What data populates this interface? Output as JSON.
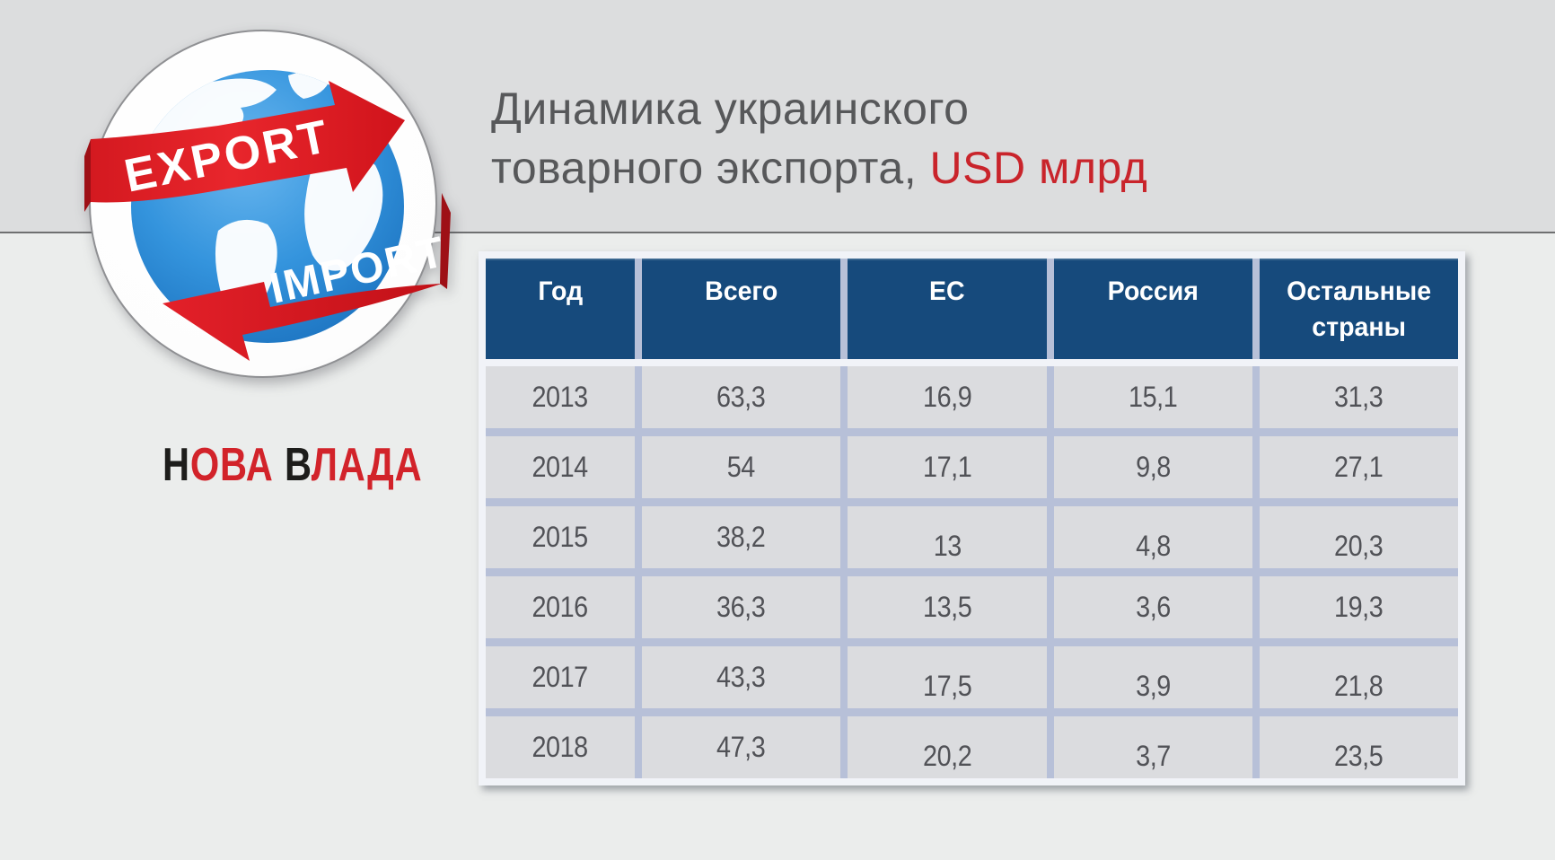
{
  "page": {
    "background_top": "#dcddde",
    "background_bottom": "#ebedec",
    "accent_red": "#c9242b",
    "header_blue": "#164a7c"
  },
  "title": {
    "line1": "Динамика украинского",
    "line2_plain": "товарного экспорта, ",
    "line2_accent": "USD млрд"
  },
  "logo": {
    "export_label": "EXPORT",
    "import_label": "IMPORT"
  },
  "brand": {
    "segments": [
      {
        "text": "Н",
        "color": "#1d1d1b"
      },
      {
        "text": "ОВА",
        "color": "#d2232a"
      },
      {
        "text": " ",
        "color": "#1d1d1b"
      },
      {
        "text": "В",
        "color": "#1d1d1b"
      },
      {
        "text": "ЛАДА",
        "color": "#d2232a"
      }
    ]
  },
  "table": {
    "columns": [
      "Год",
      "Всего",
      "ЕС",
      "Россия",
      "Остальные страны"
    ],
    "rows": [
      {
        "year": "2013",
        "values": [
          "63,3",
          "16,9",
          "15,1",
          "31,3"
        ],
        "low": false
      },
      {
        "year": "2014",
        "values": [
          "54",
          "17,1",
          "9,8",
          "27,1"
        ],
        "low": false
      },
      {
        "year": "2015",
        "values": [
          "38,2",
          "13",
          "4,8",
          "20,3"
        ],
        "low": true
      },
      {
        "year": "2016",
        "values": [
          "36,3",
          "13,5",
          "3,6",
          "19,3"
        ],
        "low": false
      },
      {
        "year": "2017",
        "values": [
          "43,3",
          "17,5",
          "3,9",
          "21,8"
        ],
        "low": true
      },
      {
        "year": "2018",
        "values": [
          "47,3",
          "20,2",
          "3,7",
          "23,5"
        ],
        "low": true
      }
    ]
  },
  "chart_data": {
    "type": "table",
    "title": "Динамика украинского товарного экспорта, USD млрд",
    "columns": [
      "Год",
      "Всего",
      "ЕС",
      "Россия",
      "Остальные страны"
    ],
    "rows": [
      [
        2013,
        63.3,
        16.9,
        15.1,
        31.3
      ],
      [
        2014,
        54,
        17.1,
        9.8,
        27.1
      ],
      [
        2015,
        38.2,
        13,
        4.8,
        20.3
      ],
      [
        2016,
        36.3,
        13.5,
        3.6,
        19.3
      ],
      [
        2017,
        43.3,
        17.5,
        3.9,
        21.8
      ],
      [
        2018,
        47.3,
        20.2,
        3.7,
        23.5
      ]
    ],
    "units": "USD млрд"
  }
}
